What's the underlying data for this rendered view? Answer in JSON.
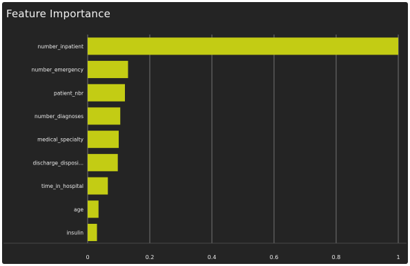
{
  "chart_data": {
    "type": "bar",
    "orientation": "horizontal",
    "title": "Feature Importance",
    "categories": [
      "number_inpatient",
      "number_emergency",
      "patient_nbr",
      "number_diagnoses",
      "medical_specialty",
      "discharge_disposi...",
      "time_in_hospital",
      "age",
      "insulin"
    ],
    "values": [
      1.0,
      0.13,
      0.12,
      0.105,
      0.1,
      0.097,
      0.065,
      0.035,
      0.03
    ],
    "xlim": [
      0,
      1
    ],
    "xticks": [
      {
        "value": 0,
        "label": "0"
      },
      {
        "value": 0.2,
        "label": "0.2"
      },
      {
        "value": 0.4,
        "label": "0.4"
      },
      {
        "value": 0.6,
        "label": "0.6"
      },
      {
        "value": 0.8,
        "label": "0.8"
      },
      {
        "value": 1,
        "label": "1"
      }
    ],
    "grid": "vertical",
    "colors": {
      "bar": "#c3cc14",
      "background": "#242424",
      "grid": "#8a8a8a",
      "text": "#e8e8e8"
    }
  }
}
